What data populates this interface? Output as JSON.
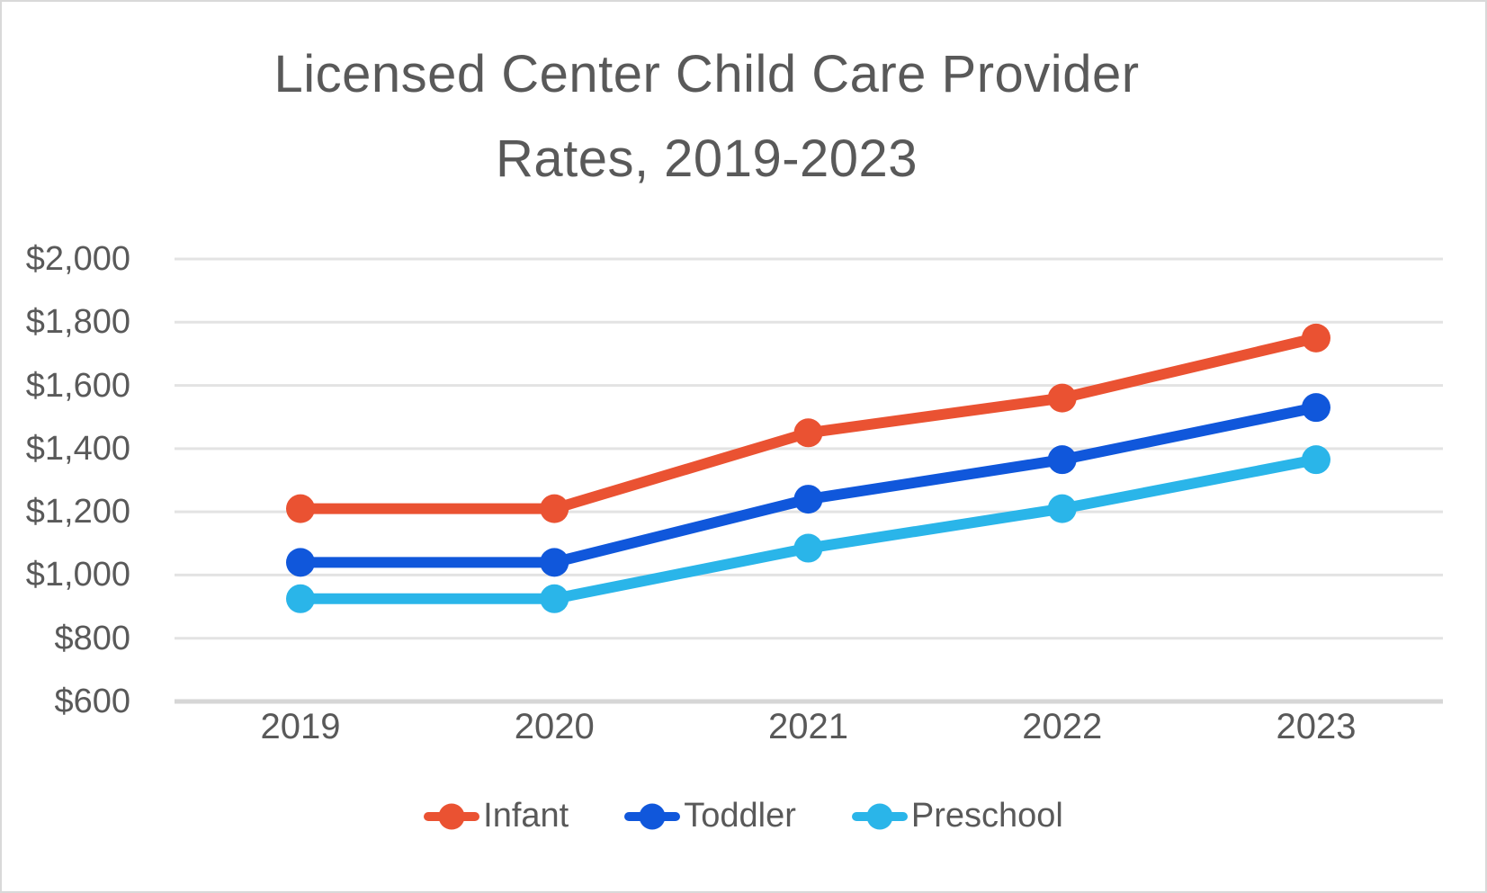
{
  "title": {
    "line1": "Licensed Center Child Care Provider",
    "line2": "Rates, 2019-2023"
  },
  "chart_data": {
    "type": "line",
    "title": "Licensed Center Child Care Provider Rates, 2019-2023",
    "categories": [
      "2019",
      "2020",
      "2021",
      "2022",
      "2023"
    ],
    "series": [
      {
        "name": "Infant",
        "color": "#EA5232",
        "values": [
          1210,
          1210,
          1450,
          1560,
          1750
        ]
      },
      {
        "name": "Toddler",
        "color": "#1057DB",
        "values": [
          1040,
          1040,
          1240,
          1365,
          1530
        ]
      },
      {
        "name": "Preschool",
        "color": "#2AB5E9",
        "values": [
          925,
          925,
          1085,
          1210,
          1365
        ]
      }
    ],
    "xlabel": "",
    "ylabel": "",
    "ylim": [
      600,
      2000
    ],
    "ytick_step": 200,
    "ytick_labels": [
      "$2,000",
      "$1,800",
      "$1,600",
      "$1,400",
      "$1,200",
      "$1,000",
      "$800",
      "$600"
    ],
    "ytick_values": [
      2000,
      1800,
      1600,
      1400,
      1200,
      1000,
      800,
      600
    ],
    "grid": true,
    "legend_position": "bottom"
  },
  "colors": {
    "text": "#595959",
    "gridline": "#e3e3e3",
    "axis_line": "#d6d6d6",
    "border": "#d9d9d9",
    "background": "#ffffff"
  }
}
